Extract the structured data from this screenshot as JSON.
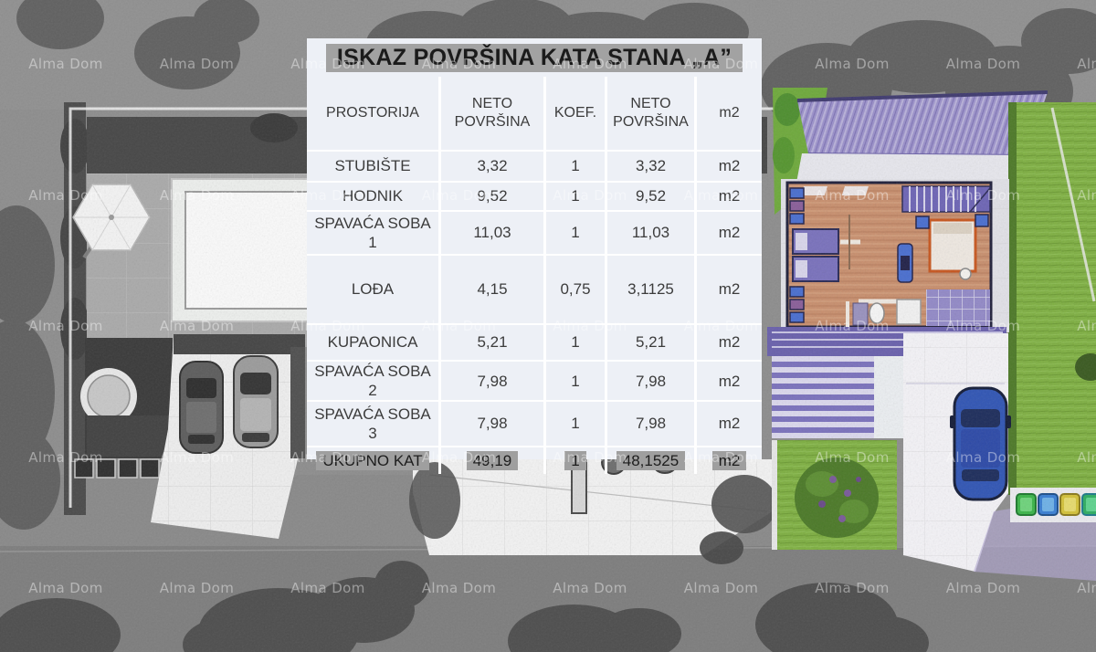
{
  "title": "ISKAZ POVRŠINA KATA STANA „A”",
  "watermark": "Alma Dom",
  "table": {
    "columns": [
      "PROSTORIJA",
      "NETO POVRŠINA",
      "KOEF.",
      "NETO POVRŠINA",
      "m2"
    ],
    "rows": [
      {
        "cells": [
          "STUBIŠTE",
          "3,32",
          "1",
          "3,32",
          "m2"
        ],
        "highlight": false
      },
      {
        "cells": [
          "HODNIK",
          "9,52",
          "1",
          "9,52",
          "m2"
        ],
        "highlight": false
      },
      {
        "cells": [
          "SPAVAĆA SOBA 1",
          "11,03",
          "1",
          "11,03",
          "m2"
        ],
        "highlight": false
      },
      {
        "cells": [
          "LOĐA",
          "4,15",
          "0,75",
          "3,1125",
          "m2"
        ],
        "highlight": false
      },
      {
        "cells": [
          "KUPAONICA",
          "5,21",
          "1",
          "5,21",
          "m2"
        ],
        "highlight": false
      },
      {
        "cells": [
          "SPAVAĆA SOBA 2",
          "7,98",
          "1",
          "7,98",
          "m2"
        ],
        "highlight": false
      },
      {
        "cells": [
          "SPAVAĆA SOBA 3",
          "7,98",
          "1",
          "7,98",
          "m2"
        ],
        "highlight": false
      },
      {
        "cells": [
          "UKUPNO KAT",
          "49,19",
          "1",
          "48,1525",
          "m2"
        ],
        "highlight": true
      }
    ]
  },
  "colors": {
    "panel_bg": "#edf0f6",
    "highlight_gray": "#9f9f9f",
    "text": "#3c3c3c",
    "lawn_green": "#7fb043",
    "roof_purple": "#9c92cb",
    "wood_floor": "#c9906f",
    "furniture_purple": "#7d74c0",
    "car_blue": "#3156b5",
    "bin_colors": [
      "#3cb54a",
      "#3a7fd4",
      "#d4c23a",
      "#2fae62",
      "#d4c23a"
    ]
  }
}
